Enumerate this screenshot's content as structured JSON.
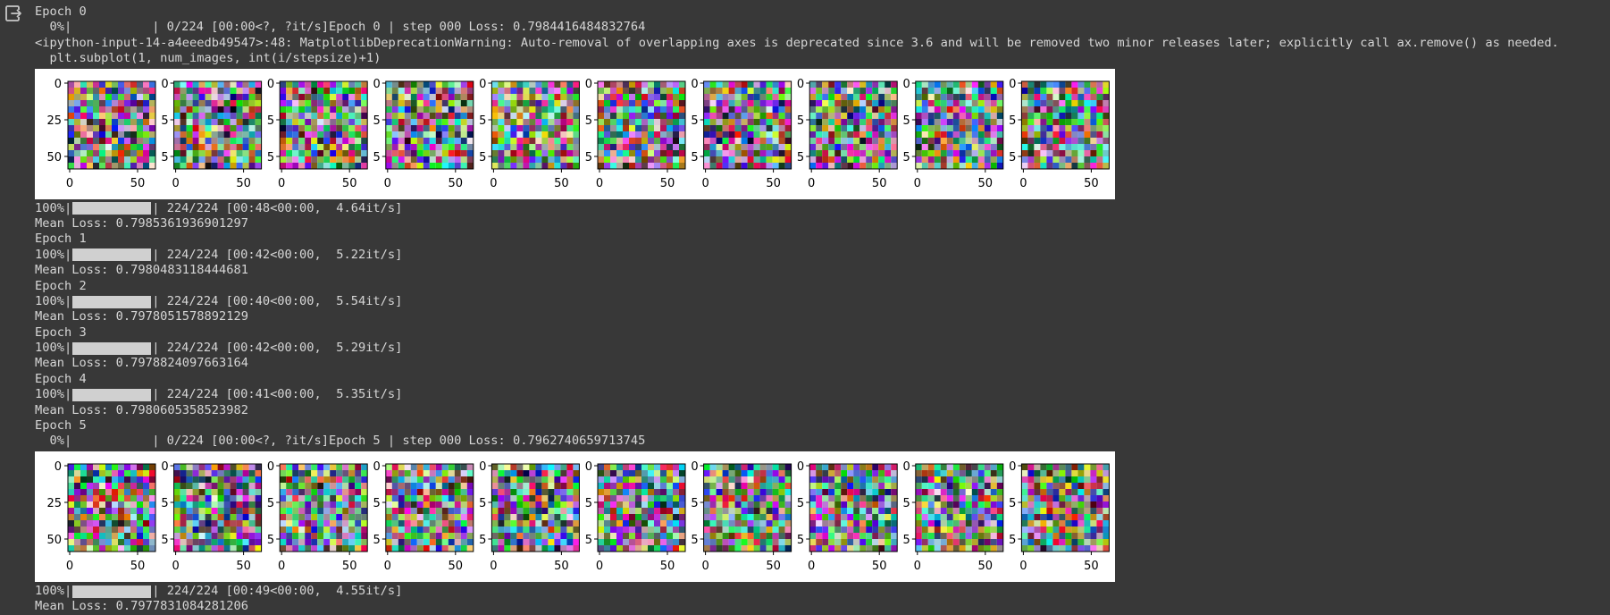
{
  "output_icon": "exit-to-app-icon",
  "colors": {
    "background": "#383838",
    "text": "#d6d6d6",
    "bar_fill": "#d0d0d0",
    "figure_bg": "#ffffff"
  },
  "lines": {
    "epoch0": "Epoch 0",
    "pbar0_prefix": "  0%|",
    "pbar0_suffix": "| 0/224 [00:00<?, ?it/s]Epoch 0 | step 000 Loss: 0.7984416484832764",
    "warn1": "<ipython-input-14-a4eeedb49547>:48: MatplotlibDeprecationWarning: Auto-removal of overlapping axes is deprecated since 3.6 and will be removed two minor releases later; explicitly call ax.remove() as needed.",
    "warn2": "  plt.subplot(1, num_images, int(i/stepsize)+1)"
  },
  "figures": [
    {
      "tick_labels_y": [
        "0",
        "25",
        "50"
      ],
      "tick_labels_x": [
        "0",
        "50"
      ],
      "overlap_label": "5",
      "num_images": 10
    },
    {
      "tick_labels_y": [
        "0",
        "25",
        "50"
      ],
      "tick_labels_x": [
        "0",
        "50"
      ],
      "overlap_label": "5",
      "num_images": 10
    }
  ],
  "epochs": [
    {
      "pct": "100%",
      "stats": "| 224/224 [00:48<00:00,  4.64it/s]",
      "mean": "Mean Loss: 0.7985361936901297",
      "next": "Epoch 1"
    },
    {
      "pct": "100%",
      "stats": "| 224/224 [00:42<00:00,  5.22it/s]",
      "mean": "Mean Loss: 0.7980483118444681",
      "next": "Epoch 2"
    },
    {
      "pct": "100%",
      "stats": "| 224/224 [00:40<00:00,  5.54it/s]",
      "mean": "Mean Loss: 0.7978051578892129",
      "next": "Epoch 3"
    },
    {
      "pct": "100%",
      "stats": "| 224/224 [00:42<00:00,  5.29it/s]",
      "mean": "Mean Loss: 0.7978824097663164",
      "next": "Epoch 4"
    },
    {
      "pct": "100%",
      "stats": "| 224/224 [00:41<00:00,  5.35it/s]",
      "mean": "Mean Loss: 0.7980605358523982",
      "next": "Epoch 5"
    }
  ],
  "pbar5_prefix": "  0%|",
  "pbar5_suffix": "| 0/224 [00:00<?, ?it/s]Epoch 5 | step 000 Loss: 0.7962740659713745",
  "final": {
    "pct": "100%",
    "stats": "| 224/224 [00:49<00:00,  4.55it/s]",
    "mean": "Mean Loss: 0.7977831084281206"
  }
}
